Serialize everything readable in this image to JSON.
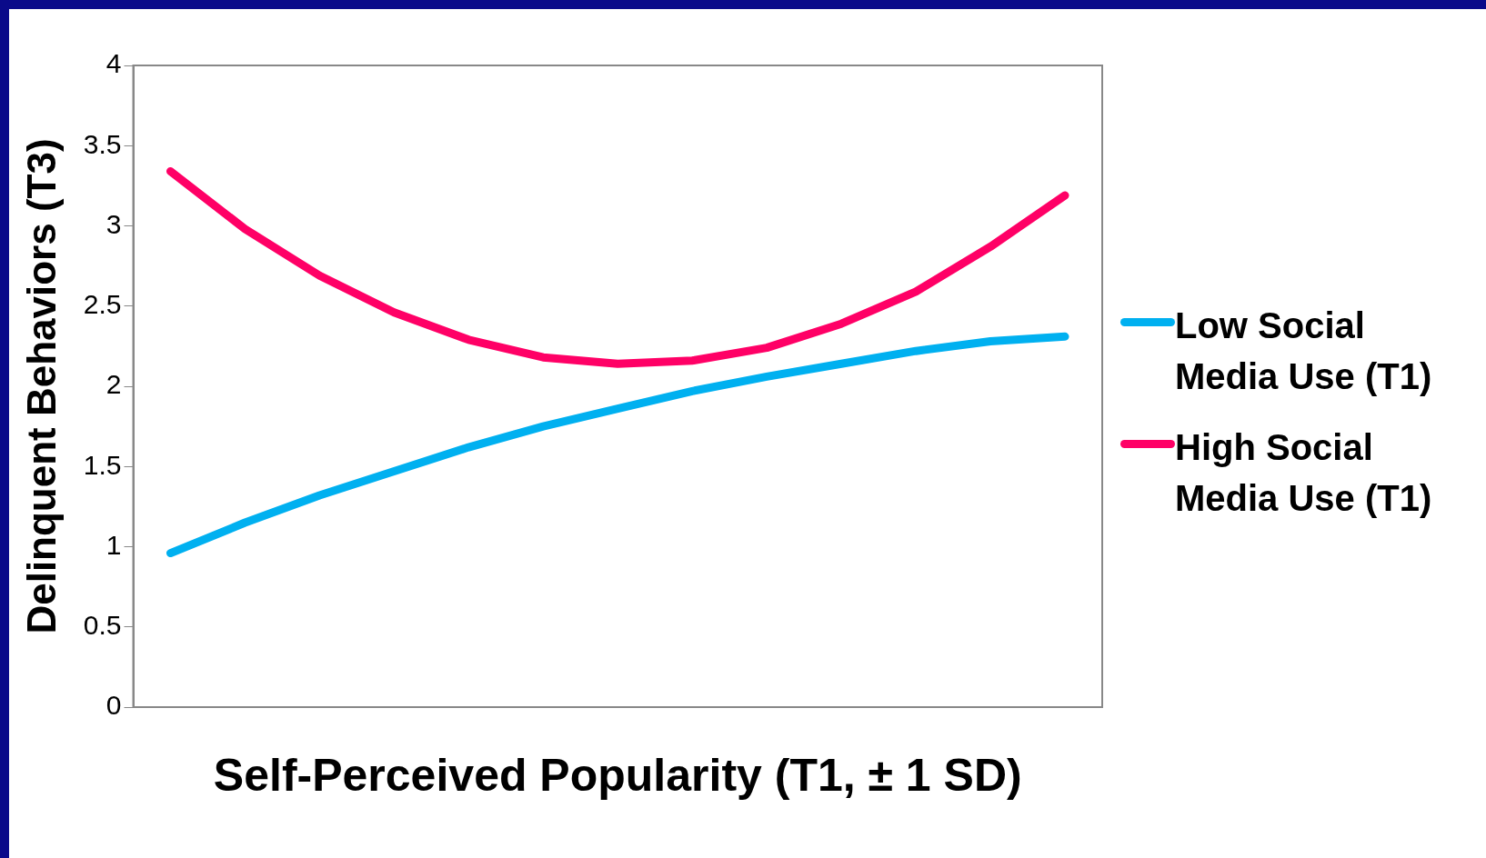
{
  "chart_data": {
    "type": "line",
    "xlabel": "Self-Perceived Popularity (T1, ± 1 SD)",
    "ylabel": "Delinquent Behaviors (T3)",
    "categories": [
      null,
      null,
      null,
      null,
      null,
      null,
      null,
      null,
      null,
      null,
      null,
      null,
      null
    ],
    "series": [
      {
        "name": "Low Social Media Use (T1)",
        "color": "#00b0f0",
        "values": [
          0.96,
          1.15,
          1.32,
          1.47,
          1.62,
          1.75,
          1.86,
          1.97,
          2.06,
          2.14,
          2.22,
          2.28,
          2.31
        ]
      },
      {
        "name": "High Social Media Use (T1)",
        "color": "#ff0066",
        "values": [
          3.34,
          2.98,
          2.69,
          2.46,
          2.29,
          2.18,
          2.14,
          2.16,
          2.24,
          2.39,
          2.59,
          2.87,
          3.19
        ]
      }
    ],
    "ylim": [
      0,
      4
    ],
    "yticks": [
      0,
      0.5,
      1,
      1.5,
      2,
      2.5,
      3,
      3.5,
      4
    ],
    "grid": false,
    "legend": "right",
    "marker": "none",
    "line_style": "solid"
  }
}
